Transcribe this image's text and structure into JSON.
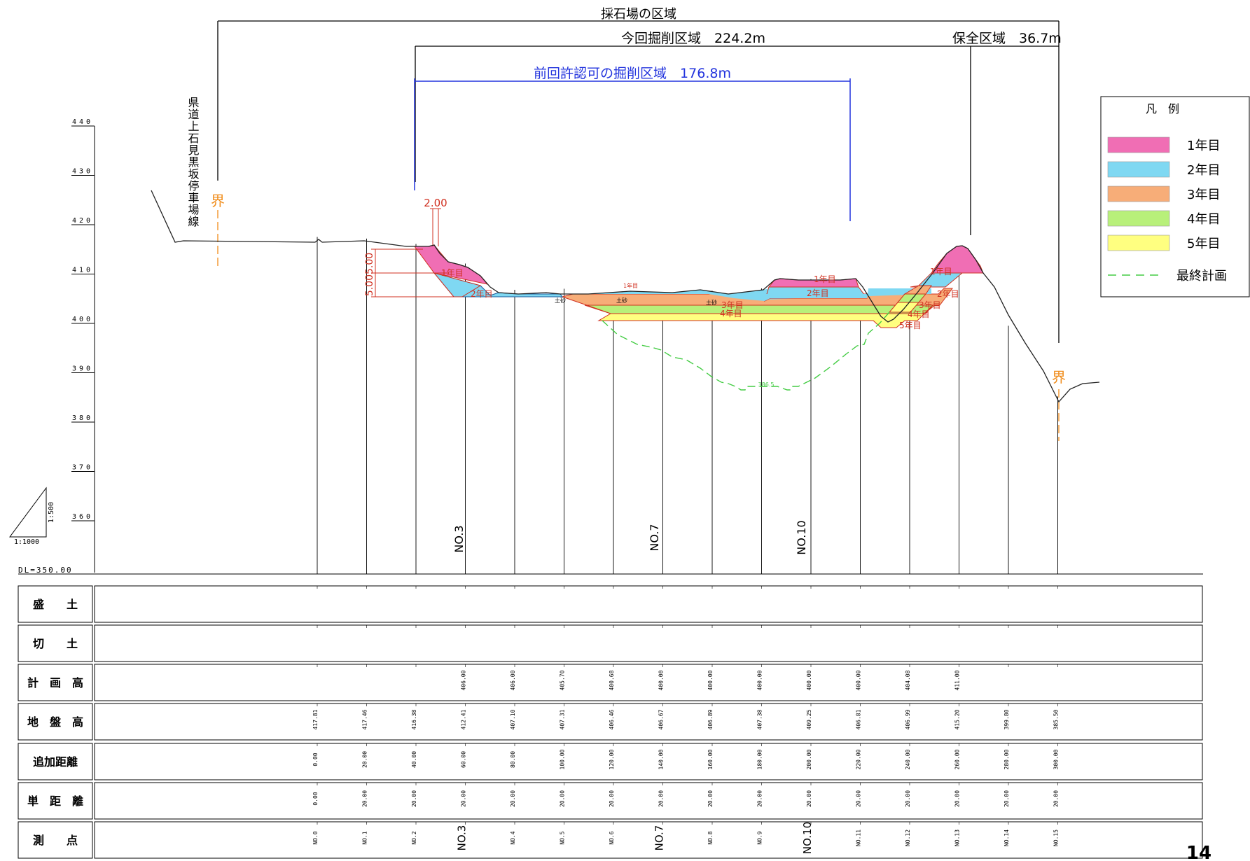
{
  "dims": {
    "quarry_area": "採石場の区域",
    "excavation": "今回掘削区域　224.2m",
    "conservation": "保全区域　36.7m",
    "previous": "前回許認可の掘削区域　176.8m"
  },
  "road_label": "県道上石見黒坂停車場線",
  "boundary_label": "界",
  "dim_200": "2.00",
  "dim_vertical": "5.005.00",
  "y_axis": {
    "ticks": [
      "440",
      "430",
      "420",
      "410",
      "400",
      "390",
      "380",
      "370",
      "360"
    ],
    "datum": "DL=350.00"
  },
  "scale": {
    "vertical": "1:500",
    "horizontal": "1:1000"
  },
  "legend": {
    "title": "凡　例",
    "items": [
      {
        "label": "1年目",
        "color": "#f06eb4"
      },
      {
        "label": "2年目",
        "color": "#7fd8f2"
      },
      {
        "label": "3年目",
        "color": "#f7ad78"
      },
      {
        "label": "4年目",
        "color": "#b8f07a"
      },
      {
        "label": "5年目",
        "color": "#ffff80"
      }
    ],
    "final_plan": "最終計画",
    "final_color": "#44cc44"
  },
  "year_labels": [
    "1年目",
    "2年目",
    "3年目",
    "4年目",
    "5年目"
  ],
  "sand_label": "土砂",
  "final_level_label": "386.5",
  "station_big": [
    "NO.3",
    "NO.7",
    "NO.10"
  ],
  "table": {
    "rows": [
      "盛　　土",
      "切　　土",
      "計　画　高",
      "地　盤　高",
      "追加距離",
      "単　距　離",
      "測　　点"
    ],
    "plan": [
      "",
      "",
      "",
      "406.00",
      "406.00",
      "405.70",
      "400.68",
      "400.00",
      "400.00",
      "400.00",
      "400.00",
      "400.00",
      "404.08",
      "411.00",
      "",
      ""
    ],
    "ground": [
      "417.81",
      "417.46",
      "416.38",
      "412.41",
      "407.10",
      "407.31",
      "406.46",
      "406.67",
      "406.89",
      "407.38",
      "409.25",
      "406.81",
      "406.99",
      "415.20",
      "399.80",
      "385.50"
    ],
    "cumulative": [
      "0.00",
      "20.00",
      "40.00",
      "60.00",
      "80.00",
      "100.00",
      "120.00",
      "140.00",
      "160.00",
      "180.00",
      "200.00",
      "220.00",
      "240.00",
      "260.00",
      "280.00",
      "300.00"
    ],
    "single": [
      "0.00",
      "20.00",
      "20.00",
      "20.00",
      "20.00",
      "20.00",
      "20.00",
      "20.00",
      "20.00",
      "20.00",
      "20.00",
      "20.00",
      "20.00",
      "20.00",
      "20.00",
      "20.00"
    ],
    "stations": [
      "NO.0",
      "NO.1",
      "NO.2",
      "NO.3",
      "NO.4",
      "NO.5",
      "NO.6",
      "NO.7",
      "NO.8",
      "NO.9",
      "NO.10",
      "NO.11",
      "NO.12",
      "NO.13",
      "NO.14",
      "NO.15"
    ]
  },
  "page_number": "14"
}
